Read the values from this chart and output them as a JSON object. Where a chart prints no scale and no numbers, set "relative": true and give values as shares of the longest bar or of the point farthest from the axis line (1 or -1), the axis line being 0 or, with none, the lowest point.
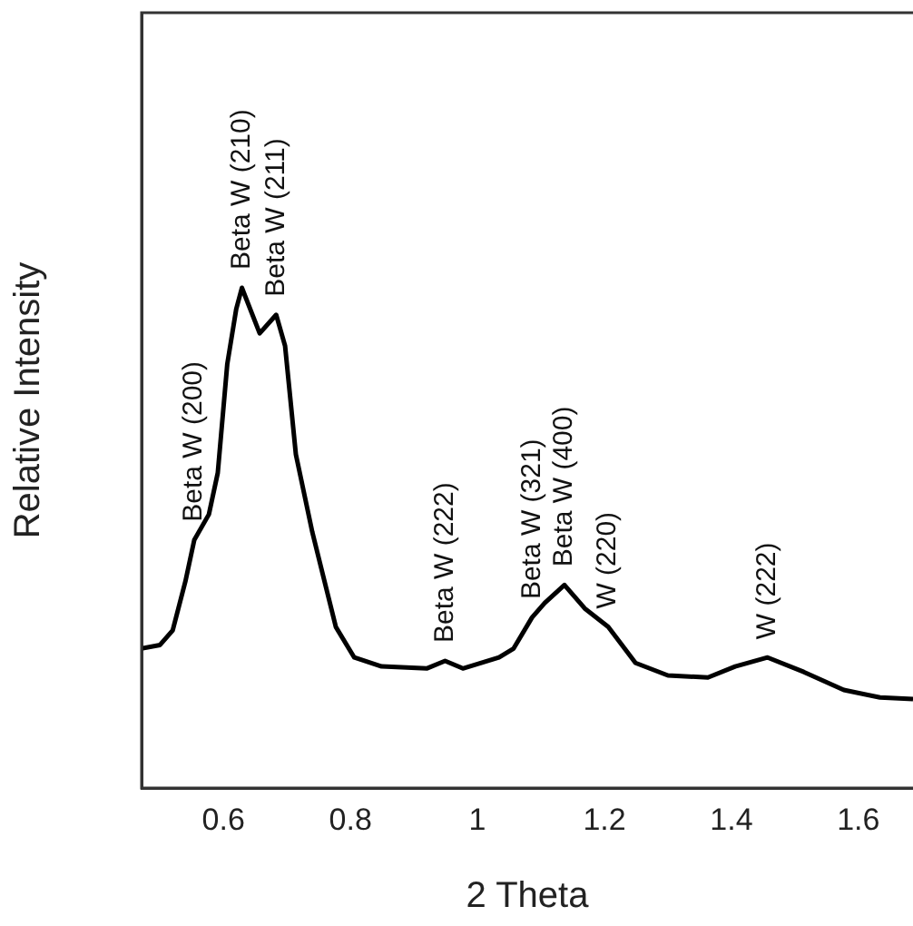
{
  "chart_data": {
    "type": "line",
    "xlabel": "2 Theta",
    "ylabel": "Relative Intensity",
    "relative": true,
    "xlim": [
      0.471,
      1.686
    ],
    "xticks": [
      0.6,
      0.8,
      1,
      1.2,
      1.4,
      1.6
    ],
    "grid": false,
    "legend": false,
    "marker": "none",
    "line_style": "solid",
    "series": [
      {
        "color": "#000000",
        "x": [
          0.471,
          0.5,
          0.52,
          0.54,
          0.554,
          0.577,
          0.591,
          0.606,
          0.62,
          0.629,
          0.657,
          0.683,
          0.697,
          0.714,
          0.74,
          0.757,
          0.777,
          0.806,
          0.849,
          0.92,
          0.949,
          0.977,
          1.034,
          1.057,
          1.086,
          1.106,
          1.137,
          1.169,
          1.206,
          1.249,
          1.3,
          1.363,
          1.406,
          1.457,
          1.514,
          1.577,
          1.634,
          1.686
        ],
        "values": [
          0.279,
          0.286,
          0.315,
          0.413,
          0.496,
          0.547,
          0.63,
          0.848,
          0.957,
          1,
          0.909,
          0.946,
          0.884,
          0.667,
          0.511,
          0.424,
          0.322,
          0.261,
          0.243,
          0.239,
          0.254,
          0.239,
          0.261,
          0.279,
          0.341,
          0.37,
          0.406,
          0.359,
          0.322,
          0.25,
          0.225,
          0.221,
          0.243,
          0.261,
          0.232,
          0.196,
          0.181,
          0.178
        ]
      }
    ],
    "annotations": [
      {
        "text": "Beta W (200)",
        "x": 0.554,
        "y": 0.496
      },
      {
        "text": "Beta W (210)",
        "x": 0.629,
        "y": 1
      },
      {
        "text": "Beta W (211)",
        "x": 0.683,
        "y": 0.946
      },
      {
        "text": "Beta W (222)",
        "x": 0.949,
        "y": 0.254
      },
      {
        "text": "Beta W (321)",
        "x": 1.086,
        "y": 0.341
      },
      {
        "text": "Beta W (400)",
        "x": 1.137,
        "y": 0.406
      },
      {
        "text": "W (220)",
        "x": 1.206,
        "y": 0.322
      },
      {
        "text": "W (222)",
        "x": 1.457,
        "y": 0.261
      }
    ]
  }
}
